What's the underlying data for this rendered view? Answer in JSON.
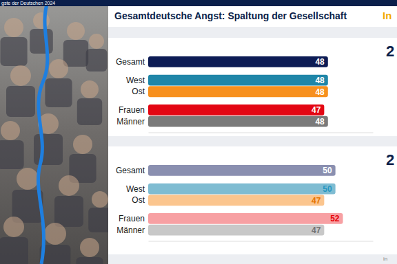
{
  "header": "gste der Deutschen 2024",
  "title": "Gesamtdeutsche Angst: Spaltung der Gesellschaft",
  "logo": "In",
  "footer": "in",
  "chart_data": [
    {
      "type": "bar",
      "title": "2",
      "orientation": "horizontal",
      "data_labels": true,
      "tick_labels": "y",
      "categories": [
        "Gesamt",
        "West",
        "Ost",
        "Frauen",
        "Männer"
      ],
      "values": [
        48,
        48,
        48,
        47,
        48
      ],
      "colors": [
        "#0d1c55",
        "#1f86a8",
        "#f7901e",
        "#e30613",
        "#7a7a7a"
      ],
      "xlim": [
        0,
        60
      ]
    },
    {
      "type": "bar",
      "title": "2",
      "orientation": "horizontal",
      "data_labels": true,
      "tick_labels": "y",
      "categories": [
        "Gesamt",
        "West",
        "Ost",
        "Frauen",
        "Männer"
      ],
      "values": [
        50,
        50,
        47,
        52,
        47
      ],
      "colors": [
        "#8a8fb0",
        "#7fbcd2",
        "#fbc58e",
        "#f7a0a3",
        "#c8c8c8"
      ],
      "xlim": [
        0,
        60
      ]
    }
  ]
}
